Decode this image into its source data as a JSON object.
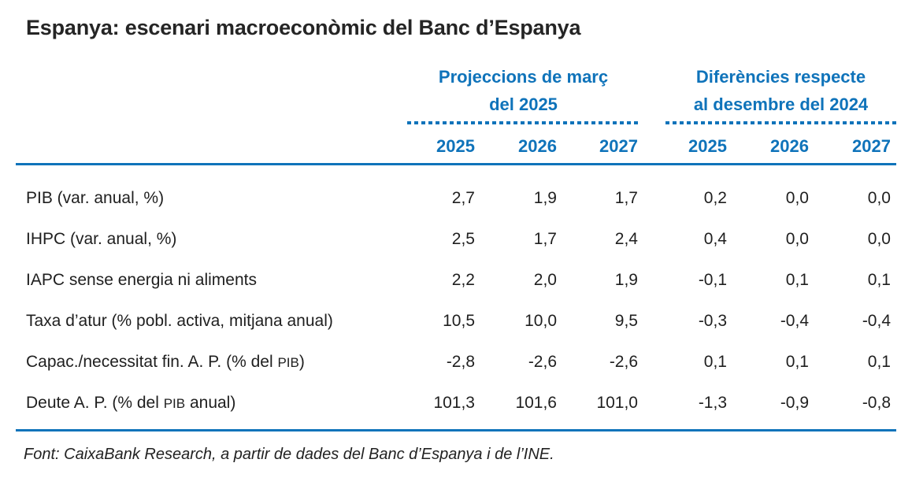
{
  "title": "Espanya: escenari macroeconòmic del Banc d’Espanya",
  "colors": {
    "accent_blue": "#0f73ba",
    "text_dark": "#1f1f1f"
  },
  "header": {
    "groups": [
      {
        "title_line1": "Projeccions de març",
        "title_line2": "del 2025",
        "years": [
          "2025",
          "2026",
          "2027"
        ]
      },
      {
        "title_line1": "Diferències respecte",
        "title_line2": "al desembre del 2024",
        "years": [
          "2025",
          "2026",
          "2027"
        ]
      }
    ]
  },
  "rows": [
    {
      "label_pre": "PIB (var. anual, %)",
      "label_small": "",
      "label_post": "",
      "values": [
        "2,7",
        "1,9",
        "1,7",
        "0,2",
        "0,0",
        "0,0"
      ]
    },
    {
      "label_pre": "IHPC (var. anual, %)",
      "label_small": "",
      "label_post": "",
      "values": [
        "2,5",
        "1,7",
        "2,4",
        "0,4",
        "0,0",
        "0,0"
      ]
    },
    {
      "label_pre": "IAPC sense energia ni aliments",
      "label_small": "",
      "label_post": "",
      "values": [
        "2,2",
        "2,0",
        "1,9",
        "-0,1",
        "0,1",
        "0,1"
      ]
    },
    {
      "label_pre": "Taxa d’atur (% pobl. activa, mitjana anual)",
      "label_small": "",
      "label_post": "",
      "values": [
        "10,5",
        "10,0",
        "9,5",
        "-0,3",
        "-0,4",
        "-0,4"
      ]
    },
    {
      "label_pre": "Capac./necessitat fin. A. P. (% del ",
      "label_small": "PIB",
      "label_post": ")",
      "values": [
        "-2,8",
        "-2,6",
        "-2,6",
        "0,1",
        "0,1",
        "0,1"
      ]
    },
    {
      "label_pre": "Deute A. P. (% del ",
      "label_small": "PIB",
      "label_post": " anual)",
      "values": [
        "101,3",
        "101,6",
        "101,0",
        "-1,3",
        "-0,9",
        "-0,8"
      ]
    }
  ],
  "footer": "Font: CaixaBank Research, a partir de dades del Banc d’Espanya i de l’INE.",
  "chart_data": {
    "type": "table",
    "title": "Espanya: escenari macroeconòmic del Banc d’Espanya",
    "column_groups": [
      "Projeccions de març del 2025",
      "Diferències respecte al desembre del 2024"
    ],
    "columns": [
      "2025",
      "2026",
      "2027",
      "2025",
      "2026",
      "2027"
    ],
    "rows": [
      {
        "label": "PIB (var. anual, %)",
        "values": [
          2.7,
          1.9,
          1.7,
          0.2,
          0.0,
          0.0
        ]
      },
      {
        "label": "IHPC (var. anual, %)",
        "values": [
          2.5,
          1.7,
          2.4,
          0.4,
          0.0,
          0.0
        ]
      },
      {
        "label": "IAPC sense energia ni aliments",
        "values": [
          2.2,
          2.0,
          1.9,
          -0.1,
          0.1,
          0.1
        ]
      },
      {
        "label": "Taxa d’atur (% pobl. activa, mitjana anual)",
        "values": [
          10.5,
          10.0,
          9.5,
          -0.3,
          -0.4,
          -0.4
        ]
      },
      {
        "label": "Capac./necessitat fin. A. P. (% del PIB)",
        "values": [
          -2.8,
          -2.6,
          -2.6,
          0.1,
          0.1,
          0.1
        ]
      },
      {
        "label": "Deute A. P. (% del PIB anual)",
        "values": [
          101.3,
          101.6,
          101.0,
          -1.3,
          -0.9,
          -0.8
        ]
      }
    ],
    "source": "Font: CaixaBank Research, a partir de dades del Banc d’Espanya i de l’INE."
  }
}
